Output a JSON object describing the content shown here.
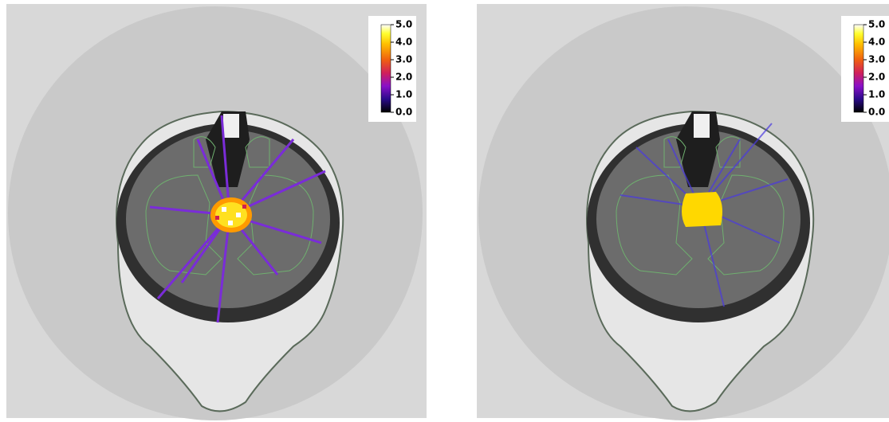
{
  "panels": [
    {
      "colorbar": {
        "range": [
          0,
          5
        ],
        "ticks": [
          {
            "value": 5,
            "label": "5.0"
          },
          {
            "value": 4,
            "label": "4.0"
          },
          {
            "value": 3,
            "label": "3.0"
          },
          {
            "value": 2,
            "label": "2.0"
          },
          {
            "value": 1,
            "label": "1.0"
          },
          {
            "value": 0,
            "label": "0.0"
          }
        ]
      }
    },
    {
      "colorbar": {
        "range": [
          0,
          5
        ],
        "ticks": [
          {
            "value": 5,
            "label": "5.0"
          },
          {
            "value": 4,
            "label": "4.0"
          },
          {
            "value": 3,
            "label": "3.0"
          },
          {
            "value": 2,
            "label": "2.0"
          },
          {
            "value": 1,
            "label": "1.0"
          },
          {
            "value": 0,
            "label": "0.0"
          }
        ]
      }
    }
  ]
}
